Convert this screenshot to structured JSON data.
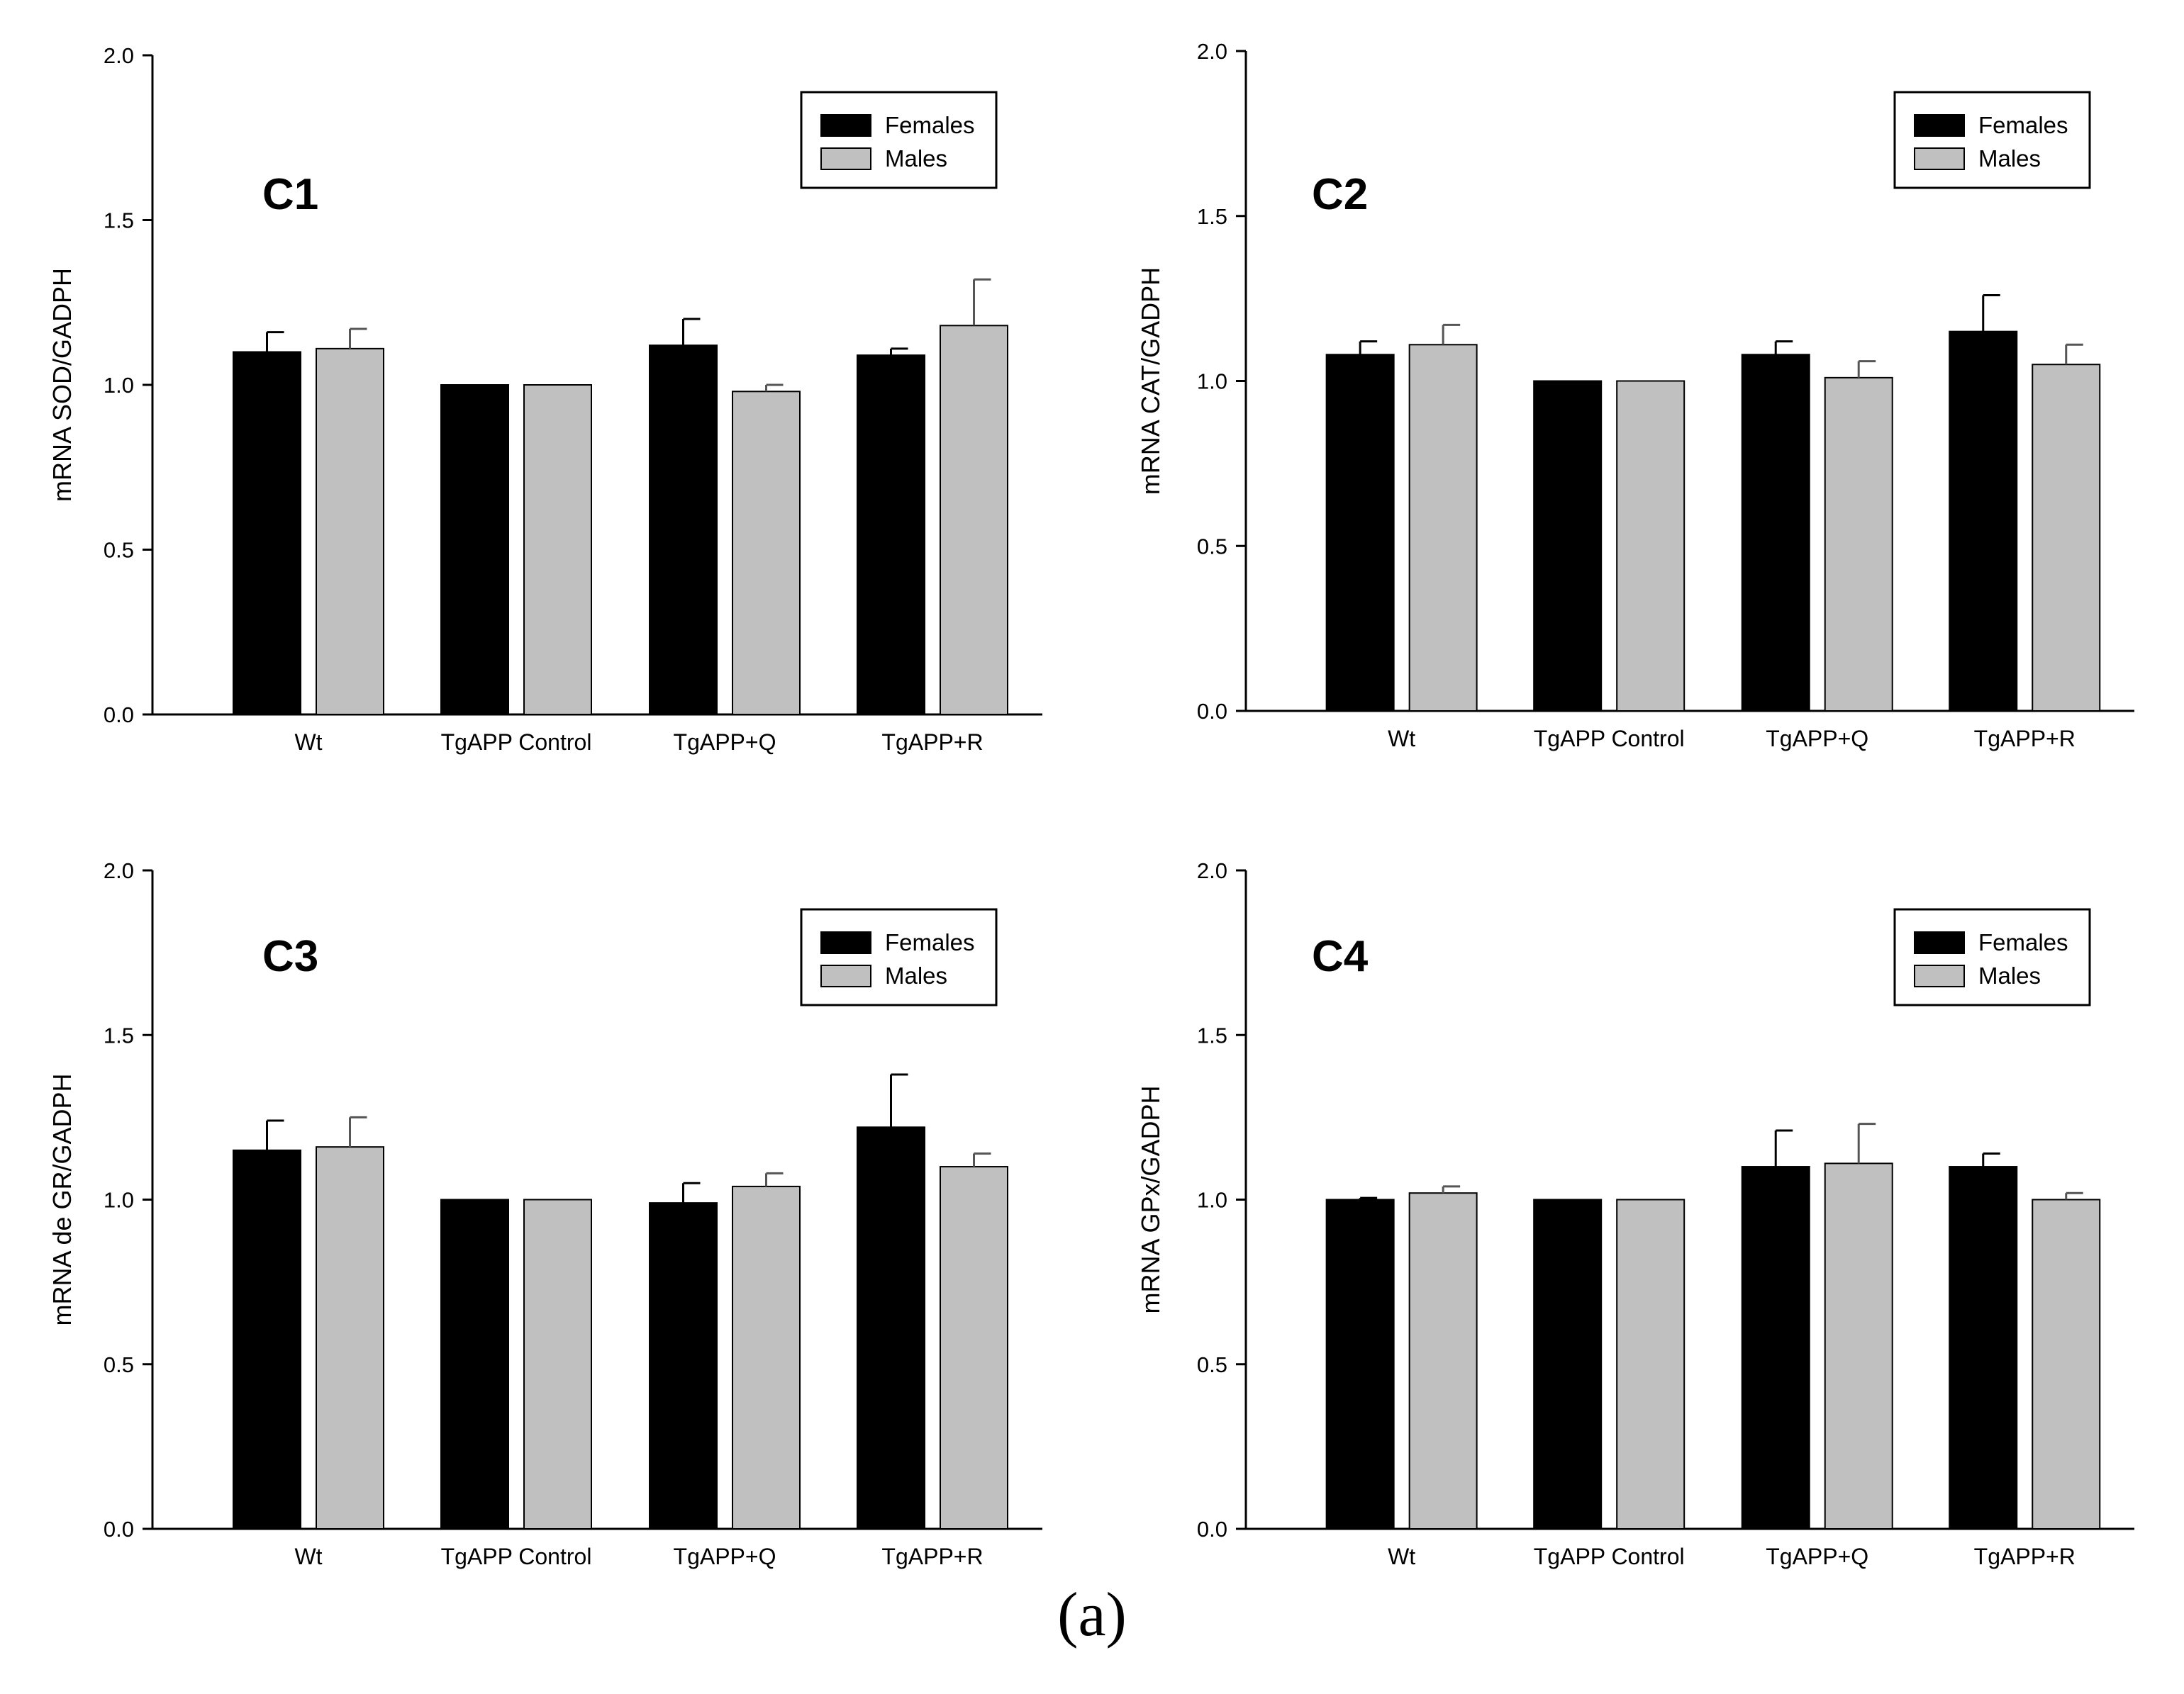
{
  "figure_caption": "(a)",
  "colors": {
    "females": "#000000",
    "males": "#c0c0c0",
    "axis": "#000000"
  },
  "chart_data": [
    {
      "type": "bar",
      "panel_label": "C1",
      "title": "",
      "ylabel": "mRNA SOD/GADPH",
      "xlabel": "",
      "categories": [
        "Wt",
        "TgAPP Control",
        "TgAPP+Q",
        "TgAPP+R"
      ],
      "ylim": [
        0,
        2.0
      ],
      "yticks": [
        "0.0",
        "0.5",
        "1.0",
        "1.5",
        "2.0"
      ],
      "legend_position": "top-right",
      "series": [
        {
          "name": "Females",
          "values": [
            1.1,
            1.0,
            1.12,
            1.09
          ],
          "errors": [
            0.06,
            0.0,
            0.08,
            0.02
          ]
        },
        {
          "name": "Males",
          "values": [
            1.11,
            1.0,
            0.98,
            1.18
          ],
          "errors": [
            0.06,
            0.0,
            0.02,
            0.14
          ]
        }
      ]
    },
    {
      "type": "bar",
      "panel_label": "C2",
      "title": "",
      "ylabel": "mRNA CAT/GADPH",
      "xlabel": "",
      "categories": [
        "Wt",
        "TgAPP Control",
        "TgAPP+Q",
        "TgAPP+R"
      ],
      "ylim": [
        0,
        2.0
      ],
      "yticks": [
        "0.0",
        "0.5",
        "1.0",
        "1.5",
        "2.0"
      ],
      "legend_position": "top-right",
      "series": [
        {
          "name": "Females",
          "values": [
            1.08,
            1.0,
            1.08,
            1.15
          ],
          "errors": [
            0.04,
            0.0,
            0.04,
            0.11
          ]
        },
        {
          "name": "Males",
          "values": [
            1.11,
            1.0,
            1.01,
            1.05
          ],
          "errors": [
            0.06,
            0.0,
            0.05,
            0.06
          ]
        }
      ]
    },
    {
      "type": "bar",
      "panel_label": "C3",
      "title": "",
      "ylabel": "mRNA de GR/GADPH",
      "xlabel": "",
      "categories": [
        "Wt",
        "TgAPP Control",
        "TgAPP+Q",
        "TgAPP+R"
      ],
      "ylim": [
        0,
        2.0
      ],
      "yticks": [
        "0.0",
        "0.5",
        "1.0",
        "1.5",
        "2.0"
      ],
      "legend_position": "top-right",
      "series": [
        {
          "name": "Females",
          "values": [
            1.15,
            1.0,
            0.99,
            1.22
          ],
          "errors": [
            0.09,
            0.0,
            0.06,
            0.16
          ]
        },
        {
          "name": "Males",
          "values": [
            1.16,
            1.0,
            1.04,
            1.1
          ],
          "errors": [
            0.09,
            0.0,
            0.04,
            0.04
          ]
        }
      ]
    },
    {
      "type": "bar",
      "panel_label": "C4",
      "title": "",
      "ylabel": "mRNA GPx/GADPH",
      "xlabel": "",
      "categories": [
        "Wt",
        "TgAPP Control",
        "TgAPP+Q",
        "TgAPP+R"
      ],
      "ylim": [
        0,
        2.0
      ],
      "yticks": [
        "0.0",
        "0.5",
        "1.0",
        "1.5",
        "2.0"
      ],
      "legend_position": "top-right",
      "series": [
        {
          "name": "Females",
          "values": [
            1.0,
            1.0,
            1.1,
            1.1
          ],
          "errors": [
            0.005,
            0.0,
            0.11,
            0.04
          ]
        },
        {
          "name": "Males",
          "values": [
            1.02,
            1.0,
            1.11,
            1.0
          ],
          "errors": [
            0.02,
            0.0,
            0.12,
            0.02
          ]
        }
      ]
    }
  ]
}
